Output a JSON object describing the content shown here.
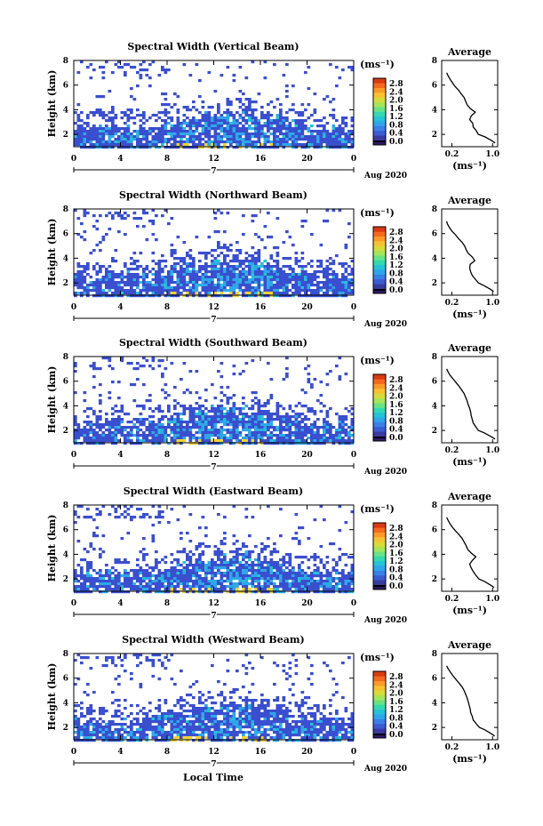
{
  "figure": {
    "x_axis_title": "Local Time",
    "date_label": "Aug 2020",
    "day_label": "7"
  },
  "colors": {
    "colorbar": [
      "#30186a",
      "#3a3aa0",
      "#3d5bd2",
      "#3a7fe8",
      "#2ea4ea",
      "#25c3d6",
      "#34d8b1",
      "#6ae284",
      "#a6e55a",
      "#d7db3b",
      "#f7c230",
      "#fb9a27",
      "#f36a1f",
      "#d93a12"
    ],
    "pixel_blue": "#3a4fcf",
    "pixel_cyan": "#2ea8e8",
    "pixel_yellow": "#f2d234"
  },
  "colorbar": {
    "unit": "(ms⁻¹)",
    "ticks": [
      "0.0",
      "0.4",
      "0.8",
      "1.2",
      "1.6",
      "2.0",
      "2.4",
      "2.8"
    ],
    "range": [
      0.0,
      3.0
    ]
  },
  "chart_data": [
    {
      "type": "heatmap",
      "title": "Spectral Width (Vertical Beam)",
      "xlabel": "",
      "ylabel": "Height (km)",
      "x_ticks": [
        "0",
        "4",
        "8",
        "12",
        "16",
        "20",
        "0"
      ],
      "y_ticks": [
        "2",
        "4",
        "6",
        "8"
      ],
      "xlim": [
        0,
        24
      ],
      "ylim": [
        1,
        8
      ],
      "description_values": {
        "lower_layer_top_km": 3.9,
        "peak_hour": 13.5
      },
      "profile": {
        "title": "Average",
        "xlabel": "(ms⁻¹)",
        "x_ticks": [
          "0.2",
          "1.0"
        ],
        "y_ticks": [
          "2",
          "4",
          "6",
          "8"
        ],
        "xlim": [
          0,
          1.1
        ],
        "ylim": [
          1,
          8
        ],
        "height": [
          1.3,
          1.5,
          1.8,
          2.0,
          2.3,
          2.6,
          2.9,
          3.2,
          3.5,
          3.8,
          4.1,
          4.4,
          4.7,
          5.0,
          5.3,
          5.6,
          5.9,
          6.2,
          6.5,
          6.8,
          7.0
        ],
        "value": [
          1.05,
          0.98,
          0.85,
          0.72,
          0.68,
          0.62,
          0.61,
          0.55,
          0.58,
          0.66,
          0.56,
          0.5,
          0.47,
          0.44,
          0.38,
          0.33,
          0.26,
          0.21,
          0.16,
          0.12,
          0.1
        ]
      }
    },
    {
      "type": "heatmap",
      "title": "Spectral Width (Northward Beam)",
      "xlabel": "",
      "ylabel": "Height (km)",
      "x_ticks": [
        "0",
        "4",
        "8",
        "12",
        "16",
        "20",
        "0"
      ],
      "y_ticks": [
        "2",
        "4",
        "6",
        "8"
      ],
      "xlim": [
        0,
        24
      ],
      "ylim": [
        1,
        8
      ],
      "profile": {
        "title": "Average",
        "xlabel": "(ms⁻¹)",
        "x_ticks": [
          "0.2",
          "1.0"
        ],
        "y_ticks": [
          "2",
          "4",
          "6",
          "8"
        ],
        "xlim": [
          0,
          1.1
        ],
        "ylim": [
          1,
          8
        ],
        "height": [
          1.3,
          1.5,
          1.8,
          2.0,
          2.3,
          2.6,
          2.9,
          3.2,
          3.5,
          3.8,
          4.1,
          4.4,
          4.7,
          5.0,
          5.3,
          5.6,
          5.9,
          6.2,
          6.5,
          6.8,
          7.0
        ],
        "value": [
          1.02,
          0.95,
          0.82,
          0.72,
          0.66,
          0.6,
          0.57,
          0.55,
          0.56,
          0.65,
          0.6,
          0.52,
          0.48,
          0.45,
          0.4,
          0.33,
          0.27,
          0.2,
          0.15,
          0.11,
          0.1
        ]
      }
    },
    {
      "type": "heatmap",
      "title": "Spectral Width (Southward Beam)",
      "xlabel": "",
      "ylabel": "Height (km)",
      "x_ticks": [
        "0",
        "4",
        "8",
        "12",
        "16",
        "20",
        "0"
      ],
      "y_ticks": [
        "2",
        "4",
        "6",
        "8"
      ],
      "xlim": [
        0,
        24
      ],
      "ylim": [
        1,
        8
      ],
      "profile": {
        "title": "Average",
        "xlabel": "(ms⁻¹)",
        "x_ticks": [
          "0.2",
          "1.0"
        ],
        "y_ticks": [
          "2",
          "4",
          "6",
          "8"
        ],
        "xlim": [
          0,
          1.1
        ],
        "ylim": [
          1,
          8
        ],
        "height": [
          1.3,
          1.5,
          1.8,
          2.0,
          2.3,
          2.6,
          2.9,
          3.2,
          3.5,
          3.8,
          4.1,
          4.4,
          4.7,
          5.0,
          5.3,
          5.6,
          5.9,
          6.2,
          6.5,
          6.8,
          7.0
        ],
        "value": [
          1.05,
          0.97,
          0.84,
          0.72,
          0.67,
          0.62,
          0.6,
          0.58,
          0.57,
          0.55,
          0.52,
          0.5,
          0.47,
          0.44,
          0.39,
          0.34,
          0.28,
          0.22,
          0.16,
          0.12,
          0.1
        ]
      }
    },
    {
      "type": "heatmap",
      "title": "Spectral Width (Eastward Beam)",
      "xlabel": "",
      "ylabel": "Height (km)",
      "x_ticks": [
        "0",
        "4",
        "8",
        "12",
        "16",
        "20",
        "0"
      ],
      "y_ticks": [
        "2",
        "4",
        "6",
        "8"
      ],
      "xlim": [
        0,
        24
      ],
      "ylim": [
        1,
        8
      ],
      "profile": {
        "title": "Average",
        "xlabel": "(ms⁻¹)",
        "x_ticks": [
          "0.2",
          "1.0"
        ],
        "y_ticks": [
          "2",
          "4",
          "6",
          "8"
        ],
        "xlim": [
          0,
          1.1
        ],
        "ylim": [
          1,
          8
        ],
        "height": [
          1.3,
          1.5,
          1.8,
          2.0,
          2.3,
          2.6,
          2.9,
          3.2,
          3.5,
          3.8,
          4.1,
          4.4,
          4.7,
          5.0,
          5.3,
          5.6,
          5.9,
          6.2,
          6.5,
          6.8,
          7.0
        ],
        "value": [
          1.03,
          0.96,
          0.84,
          0.73,
          0.67,
          0.62,
          0.58,
          0.55,
          0.6,
          0.67,
          0.58,
          0.51,
          0.48,
          0.44,
          0.4,
          0.34,
          0.27,
          0.21,
          0.16,
          0.12,
          0.1
        ]
      }
    },
    {
      "type": "heatmap",
      "title": "Spectral Width (Westward Beam)",
      "xlabel": "",
      "ylabel": "Height (km)",
      "x_ticks": [
        "0",
        "4",
        "8",
        "12",
        "16",
        "20",
        "0"
      ],
      "y_ticks": [
        "2",
        "4",
        "6",
        "8"
      ],
      "xlim": [
        0,
        24
      ],
      "ylim": [
        1,
        8
      ],
      "profile": {
        "title": "Average",
        "xlabel": "(ms⁻¹)",
        "x_ticks": [
          "0.2",
          "1.0"
        ],
        "y_ticks": [
          "2",
          "4",
          "6",
          "8"
        ],
        "xlim": [
          0,
          1.1
        ],
        "ylim": [
          1,
          8
        ],
        "height": [
          1.3,
          1.5,
          1.8,
          2.0,
          2.3,
          2.6,
          2.9,
          3.2,
          3.5,
          3.8,
          4.1,
          4.4,
          4.7,
          5.0,
          5.3,
          5.6,
          5.9,
          6.2,
          6.5,
          6.8,
          7.0
        ],
        "value": [
          1.04,
          0.97,
          0.85,
          0.74,
          0.68,
          0.62,
          0.6,
          0.57,
          0.56,
          0.54,
          0.52,
          0.5,
          0.47,
          0.44,
          0.4,
          0.34,
          0.28,
          0.22,
          0.17,
          0.12,
          0.1
        ]
      }
    }
  ]
}
